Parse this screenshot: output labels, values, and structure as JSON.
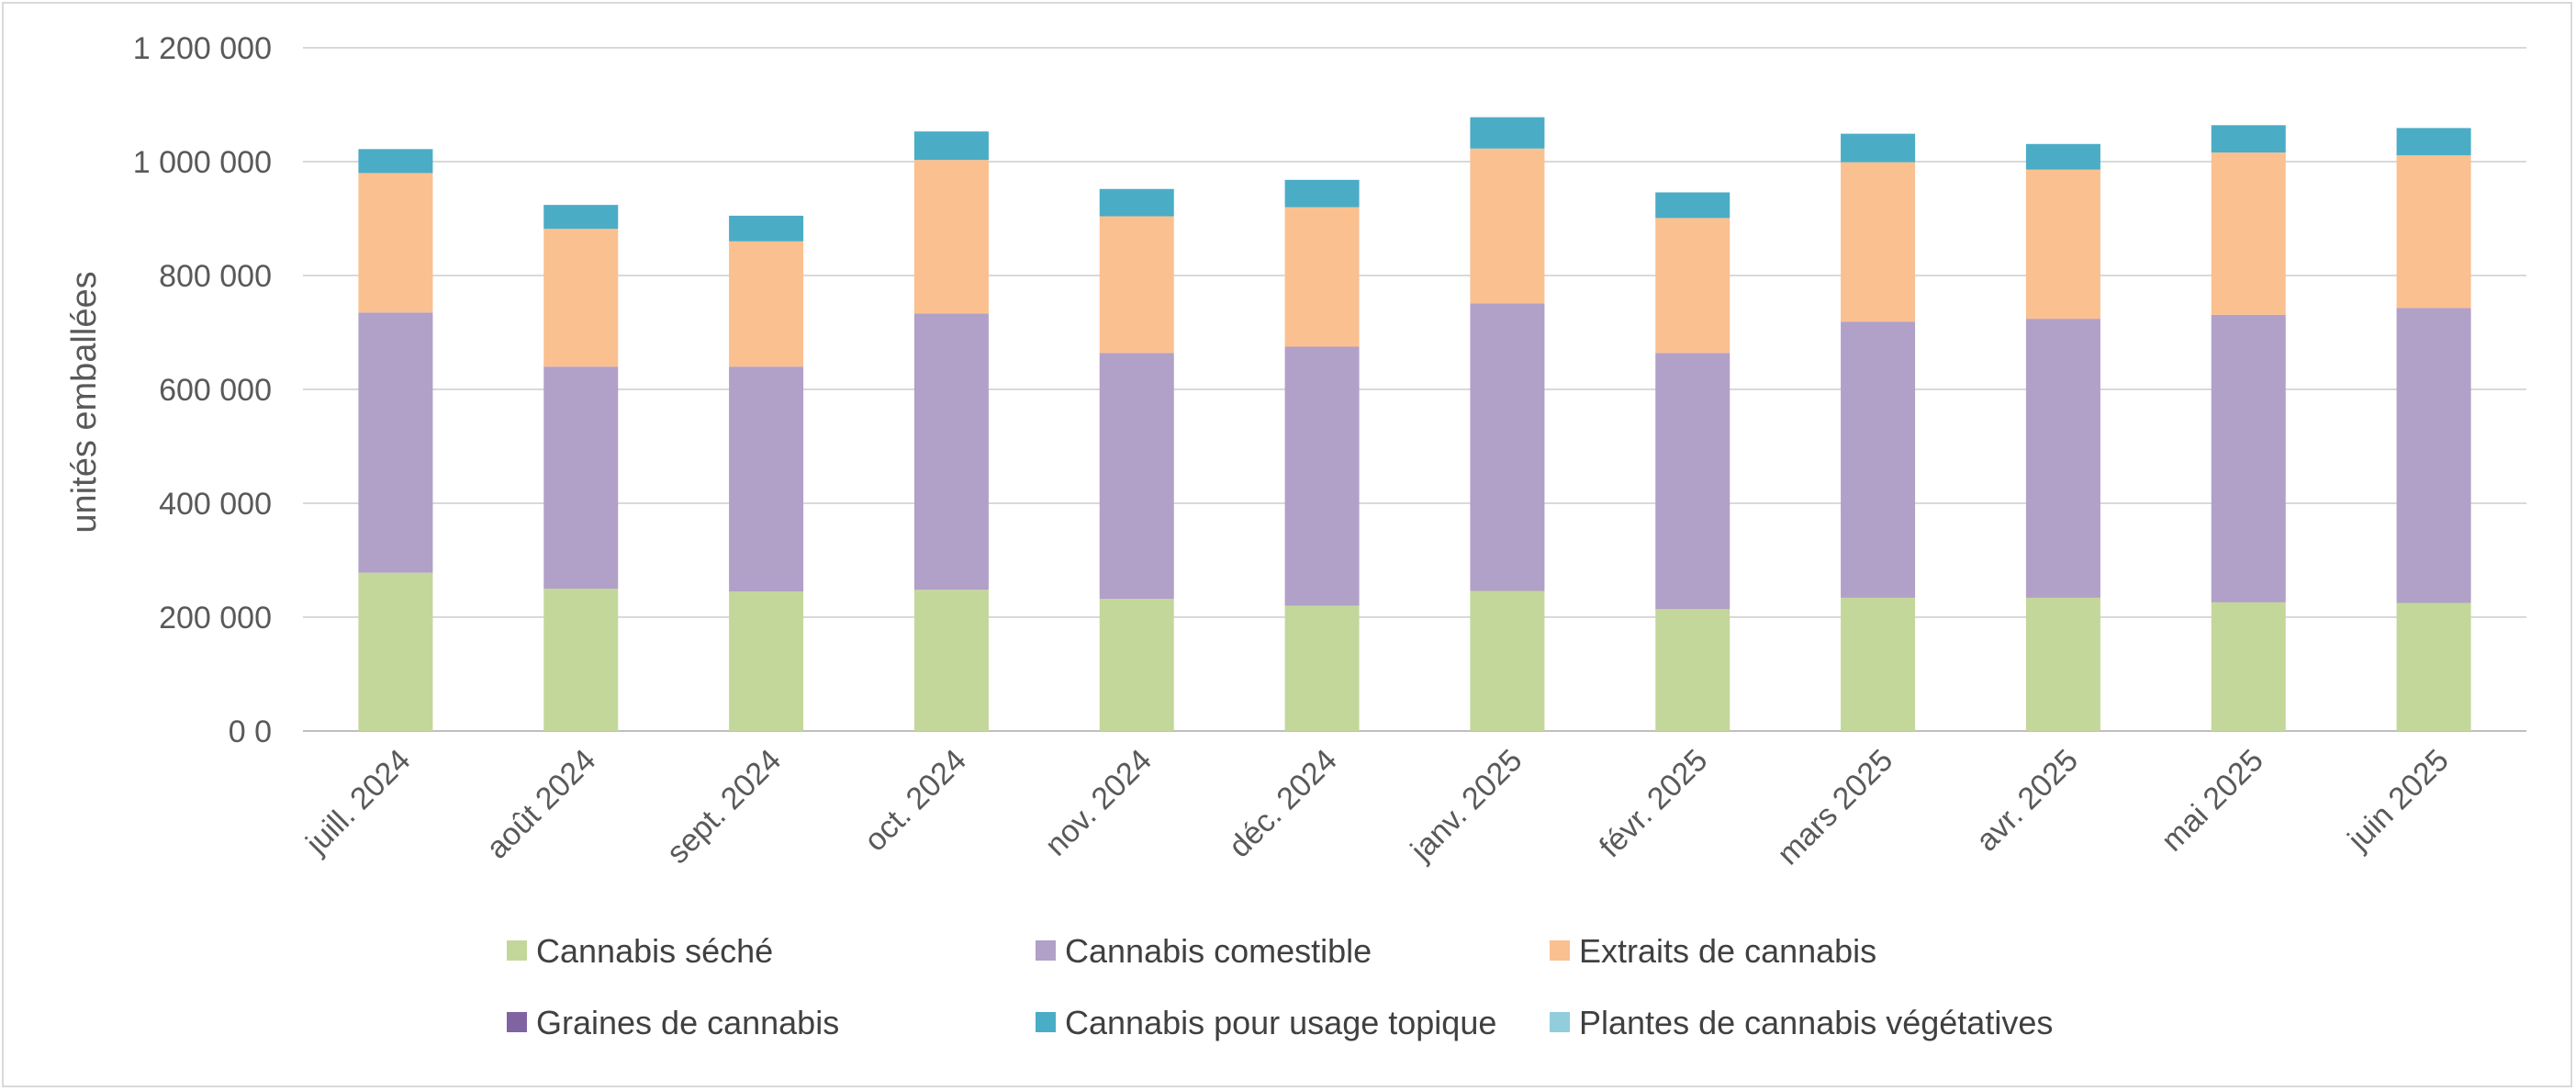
{
  "chart_data": {
    "type": "bar",
    "stacked": true,
    "title": "",
    "xlabel": "",
    "ylabel": "unités emballées",
    "ylim": [
      0,
      1200000
    ],
    "y_ticks": [
      0,
      200000,
      400000,
      600000,
      800000,
      1000000,
      1200000
    ],
    "y_tick_labels": [
      "0 0",
      "200 000",
      "400 000",
      "600 000",
      "800 000",
      "1 000 000",
      "1 200 000"
    ],
    "grid": true,
    "legend_position": "bottom",
    "categories": [
      "juill. 2024",
      "août 2024",
      "sept. 2024",
      "oct. 2024",
      "nov. 2024",
      "déc. 2024",
      "janv. 2025",
      "févr. 2025",
      "mars 2025",
      "avr. 2025",
      "mai 2025",
      "juin 2025"
    ],
    "series": [
      {
        "name": "Cannabis séché",
        "color": "#c4d79b",
        "values": [
          278000,
          250000,
          245000,
          248000,
          232000,
          220000,
          246000,
          214000,
          234000,
          234000,
          226000,
          225000
        ]
      },
      {
        "name": "Cannabis comestible",
        "color": "#b1a0c7",
        "values": [
          457000,
          390000,
          395000,
          485000,
          432000,
          455000,
          505000,
          450000,
          485000,
          490000,
          505000,
          518000
        ]
      },
      {
        "name": "Extraits de cannabis",
        "color": "#fac090",
        "values": [
          245000,
          242000,
          220000,
          270000,
          240000,
          245000,
          272000,
          237000,
          280000,
          262000,
          285000,
          268000
        ]
      },
      {
        "name": "Graines de cannabis",
        "color": "#8064a2",
        "values": [
          0,
          0,
          0,
          0,
          0,
          0,
          0,
          0,
          0,
          0,
          0,
          0
        ]
      },
      {
        "name": "Cannabis pour usage topique",
        "color": "#4bacc6",
        "values": [
          42000,
          42000,
          45000,
          50000,
          48000,
          48000,
          55000,
          45000,
          50000,
          45000,
          48000,
          48000
        ]
      },
      {
        "name": "Plantes de cannabis végétatives",
        "color": "#92cddc",
        "values": [
          0,
          0,
          0,
          0,
          0,
          0,
          0,
          0,
          0,
          0,
          0,
          0
        ]
      }
    ]
  }
}
